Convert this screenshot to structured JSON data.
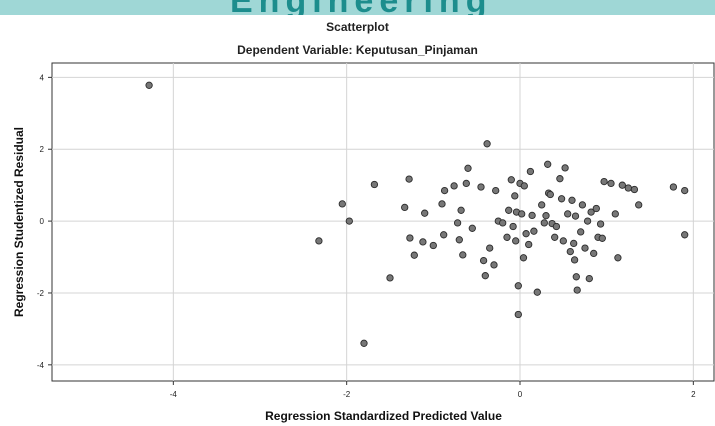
{
  "banner": {
    "text": "Engineering"
  },
  "chart_data": {
    "type": "scatter",
    "title": "Scatterplot",
    "subtitle": "Dependent Variable: Keputusan_Pinjaman",
    "xlabel": "Regression Standardized Predicted Value",
    "ylabel": "Regression Studentized Residual",
    "xlim": [
      -5.4,
      2.25
    ],
    "ylim": [
      -4.45,
      4.4
    ],
    "xticks": [
      -4,
      -2,
      0,
      2
    ],
    "yticks": [
      -4,
      -2,
      0,
      2,
      4
    ],
    "grid": true,
    "marker_color": "#777777",
    "points": [
      [
        -4.28,
        3.78
      ],
      [
        -2.32,
        -0.55
      ],
      [
        -2.05,
        0.48
      ],
      [
        -1.97,
        0.0
      ],
      [
        -1.8,
        -3.4
      ],
      [
        -1.68,
        1.02
      ],
      [
        -1.5,
        -1.58
      ],
      [
        -1.33,
        0.38
      ],
      [
        -1.28,
        1.17
      ],
      [
        -1.27,
        -0.47
      ],
      [
        -1.22,
        -0.95
      ],
      [
        -1.12,
        -0.58
      ],
      [
        -1.1,
        0.22
      ],
      [
        -1.0,
        -0.68
      ],
      [
        -0.9,
        0.48
      ],
      [
        -0.88,
        -0.38
      ],
      [
        -0.87,
        0.85
      ],
      [
        -0.76,
        0.98
      ],
      [
        -0.72,
        -0.05
      ],
      [
        -0.7,
        -0.52
      ],
      [
        -0.68,
        0.3
      ],
      [
        -0.66,
        -0.94
      ],
      [
        -0.62,
        1.05
      ],
      [
        -0.6,
        1.47
      ],
      [
        -0.55,
        -0.2
      ],
      [
        -0.45,
        0.95
      ],
      [
        -0.42,
        -1.1
      ],
      [
        -0.4,
        -1.52
      ],
      [
        -0.38,
        2.15
      ],
      [
        -0.35,
        -0.75
      ],
      [
        -0.3,
        -1.22
      ],
      [
        -0.28,
        0.85
      ],
      [
        -0.25,
        0.0
      ],
      [
        -0.2,
        -0.05
      ],
      [
        -0.15,
        -0.45
      ],
      [
        -0.13,
        0.3
      ],
      [
        -0.1,
        1.15
      ],
      [
        -0.08,
        -0.15
      ],
      [
        -0.06,
        0.7
      ],
      [
        -0.05,
        -0.55
      ],
      [
        -0.04,
        0.25
      ],
      [
        -0.02,
        -1.8
      ],
      [
        -0.02,
        -2.6
      ],
      [
        0.0,
        1.05
      ],
      [
        0.02,
        0.2
      ],
      [
        0.04,
        -1.02
      ],
      [
        0.05,
        0.98
      ],
      [
        0.07,
        -0.35
      ],
      [
        0.1,
        -0.65
      ],
      [
        0.12,
        1.38
      ],
      [
        0.14,
        0.16
      ],
      [
        0.16,
        -0.28
      ],
      [
        0.2,
        -1.98
      ],
      [
        0.25,
        0.45
      ],
      [
        0.28,
        -0.05
      ],
      [
        0.3,
        0.15
      ],
      [
        0.32,
        1.58
      ],
      [
        0.33,
        0.78
      ],
      [
        0.35,
        0.74
      ],
      [
        0.37,
        -0.07
      ],
      [
        0.4,
        -0.45
      ],
      [
        0.42,
        -0.15
      ],
      [
        0.46,
        1.18
      ],
      [
        0.48,
        0.62
      ],
      [
        0.5,
        -0.55
      ],
      [
        0.52,
        1.48
      ],
      [
        0.55,
        0.2
      ],
      [
        0.58,
        -0.85
      ],
      [
        0.6,
        0.58
      ],
      [
        0.62,
        -0.62
      ],
      [
        0.63,
        -1.08
      ],
      [
        0.64,
        0.14
      ],
      [
        0.65,
        -1.55
      ],
      [
        0.66,
        -1.92
      ],
      [
        0.7,
        -0.3
      ],
      [
        0.72,
        0.45
      ],
      [
        0.75,
        -0.75
      ],
      [
        0.78,
        0.0
      ],
      [
        0.8,
        -1.6
      ],
      [
        0.82,
        0.25
      ],
      [
        0.85,
        -0.9
      ],
      [
        0.88,
        0.35
      ],
      [
        0.9,
        -0.45
      ],
      [
        0.93,
        -0.08
      ],
      [
        0.95,
        -0.48
      ],
      [
        0.97,
        1.1
      ],
      [
        1.05,
        1.05
      ],
      [
        1.1,
        0.2
      ],
      [
        1.13,
        -1.02
      ],
      [
        1.18,
        1.0
      ],
      [
        1.25,
        0.92
      ],
      [
        1.32,
        0.88
      ],
      [
        1.37,
        0.45
      ],
      [
        1.77,
        0.95
      ],
      [
        1.9,
        0.85
      ],
      [
        1.9,
        -0.38
      ]
    ]
  }
}
